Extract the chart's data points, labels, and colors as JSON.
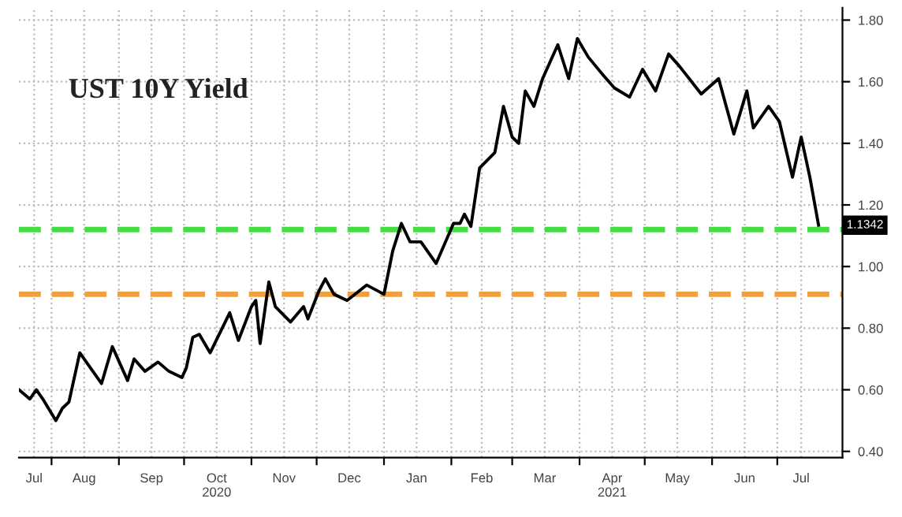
{
  "chart_data": {
    "type": "line",
    "title": "UST 10Y Yield",
    "x": [
      "2020-07-17",
      "2020-07-22",
      "2020-07-25",
      "2020-07-28",
      "2020-08-03",
      "2020-08-06",
      "2020-08-09",
      "2020-08-14",
      "2020-08-19",
      "2020-08-24",
      "2020-08-29",
      "2020-09-05",
      "2020-09-08",
      "2020-09-13",
      "2020-09-19",
      "2020-09-24",
      "2020-09-30",
      "2020-10-02",
      "2020-10-05",
      "2020-10-08",
      "2020-10-13",
      "2020-10-22",
      "2020-10-26",
      "2020-11-01",
      "2020-11-03",
      "2020-11-05",
      "2020-11-09",
      "2020-11-12",
      "2020-11-19",
      "2020-11-25",
      "2020-11-27",
      "2020-12-02",
      "2020-12-05",
      "2020-12-09",
      "2020-12-15",
      "2020-12-24",
      "2021-01-01",
      "2021-01-05",
      "2021-01-09",
      "2021-01-13",
      "2021-01-18",
      "2021-01-25",
      "2021-02-02",
      "2021-02-05",
      "2021-02-07",
      "2021-02-10",
      "2021-02-14",
      "2021-02-21",
      "2021-02-25",
      "2021-03-01",
      "2021-03-04",
      "2021-03-07",
      "2021-03-11",
      "2021-03-15",
      "2021-03-22",
      "2021-03-27",
      "2021-03-31",
      "2021-04-05",
      "2021-04-12",
      "2021-04-17",
      "2021-04-24",
      "2021-04-30",
      "2021-05-06",
      "2021-05-12",
      "2021-05-17",
      "2021-05-27",
      "2021-06-04",
      "2021-06-11",
      "2021-06-17",
      "2021-06-20",
      "2021-06-27",
      "2021-07-02",
      "2021-07-08",
      "2021-07-12",
      "2021-07-16",
      "2021-07-20"
    ],
    "series": [
      {
        "color": "#000000",
        "values": [
          0.6,
          0.57,
          0.6,
          0.57,
          0.5,
          0.54,
          0.56,
          0.72,
          0.67,
          0.62,
          0.74,
          0.63,
          0.7,
          0.66,
          0.69,
          0.66,
          0.64,
          0.67,
          0.77,
          0.78,
          0.72,
          0.85,
          0.76,
          0.87,
          0.89,
          0.75,
          0.95,
          0.87,
          0.82,
          0.87,
          0.83,
          0.92,
          0.96,
          0.91,
          0.89,
          0.94,
          0.91,
          1.05,
          1.14,
          1.08,
          1.08,
          1.01,
          1.14,
          1.14,
          1.17,
          1.13,
          1.32,
          1.37,
          1.52,
          1.42,
          1.4,
          1.57,
          1.52,
          1.61,
          1.72,
          1.61,
          1.74,
          1.68,
          1.62,
          1.58,
          1.55,
          1.64,
          1.57,
          1.69,
          1.65,
          1.56,
          1.61,
          1.43,
          1.57,
          1.45,
          1.52,
          1.47,
          1.29,
          1.42,
          1.29,
          1.1342
        ]
      }
    ],
    "xlim": [
      "2020-07-17",
      "2021-07-31"
    ],
    "xticks": [
      {
        "value": "2020-07-24",
        "label": "Jul"
      },
      {
        "value": "2020-08-01",
        "label": null
      },
      {
        "value": "2020-08-16",
        "label": "Aug"
      },
      {
        "value": "2020-09-01",
        "label": null
      },
      {
        "value": "2020-09-16",
        "label": "Sep"
      },
      {
        "value": "2020-10-01",
        "label": null
      },
      {
        "value": "2020-10-16",
        "label": "Oct\n2020"
      },
      {
        "value": "2020-11-01",
        "label": null
      },
      {
        "value": "2020-11-16",
        "label": "Nov"
      },
      {
        "value": "2020-12-01",
        "label": null
      },
      {
        "value": "2020-12-16",
        "label": "Dec"
      },
      {
        "value": "2021-01-01",
        "label": null
      },
      {
        "value": "2021-01-16",
        "label": "Jan"
      },
      {
        "value": "2021-02-01",
        "label": null
      },
      {
        "value": "2021-02-15",
        "label": "Feb"
      },
      {
        "value": "2021-03-01",
        "label": null
      },
      {
        "value": "2021-03-16",
        "label": "Mar"
      },
      {
        "value": "2021-04-01",
        "label": null
      },
      {
        "value": "2021-04-16",
        "label": "Apr\n2021"
      },
      {
        "value": "2021-05-01",
        "label": null
      },
      {
        "value": "2021-05-16",
        "label": "May"
      },
      {
        "value": "2021-06-01",
        "label": null
      },
      {
        "value": "2021-06-16",
        "label": "Jun"
      },
      {
        "value": "2021-07-01",
        "label": null
      },
      {
        "value": "2021-07-12",
        "label": "Jul"
      }
    ],
    "ylim": [
      0.38,
      1.84
    ],
    "yticks": [
      {
        "value": 0.4,
        "label": "0.40"
      },
      {
        "value": 0.6,
        "label": "0.60"
      },
      {
        "value": 0.8,
        "label": "0.80"
      },
      {
        "value": 1.0,
        "label": "1.00"
      },
      {
        "value": 1.2,
        "label": "1.20"
      },
      {
        "value": 1.4,
        "label": "1.40"
      },
      {
        "value": 1.6,
        "label": "1.60"
      },
      {
        "value": 1.8,
        "label": "1.80"
      }
    ],
    "ref_lines": [
      {
        "axis": "y",
        "value": 0.91,
        "color": "#f0a040",
        "line_style": "dashed"
      },
      {
        "axis": "y",
        "value": 1.12,
        "color": "#44dd44",
        "line_style": "dashed"
      }
    ],
    "annotations": [
      {
        "text": "1.1342",
        "x": "2021-07-20",
        "y": 1.1342
      }
    ],
    "grid": true,
    "marker": "none",
    "line_style": "solid"
  }
}
